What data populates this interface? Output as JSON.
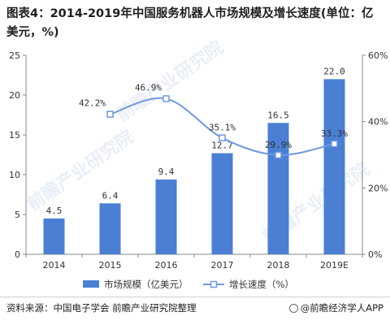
{
  "header": {
    "title": "图表4：2014-2019年中国服务机器人市场规模及增长速度(单位：亿美元，%)"
  },
  "footer": {
    "source": "资料来源：中国电子学会 前瞻产业研究院整理",
    "credit": "@前瞻经济学人APP"
  },
  "watermark": "前瞻产业研究院",
  "colors": {
    "bar": "#4a7fd4",
    "line": "#6f99dd",
    "marker_fill": "#ffffff",
    "grid": "#d9d9d9",
    "axis_text": "#333333"
  },
  "chart_data": {
    "type": "bar",
    "categories": [
      "2014",
      "2015",
      "2016",
      "2017",
      "2018",
      "2019E"
    ],
    "series": [
      {
        "name": "市场规模（亿美元）",
        "type": "bar",
        "axis": "left",
        "values": [
          4.5,
          6.4,
          9.4,
          12.7,
          16.5,
          22.0
        ],
        "labels": [
          "4.5",
          "6.4",
          "9.4",
          "12.7",
          "16.5",
          "22.0"
        ]
      },
      {
        "name": "增长速度（%）",
        "type": "line",
        "axis": "right",
        "values": [
          null,
          42.2,
          46.9,
          35.1,
          29.9,
          33.3
        ],
        "labels": [
          "",
          "42.2%",
          "46.9%",
          "35.1%",
          "29.9%",
          "33.3%"
        ]
      }
    ],
    "y_left": {
      "lim": [
        0,
        25
      ],
      "ticks": [
        "0",
        "5",
        "10",
        "15",
        "20",
        "25"
      ]
    },
    "y_right": {
      "lim": [
        0,
        60
      ],
      "ticks": [
        "0%",
        "20%",
        "40%",
        "60%"
      ]
    },
    "grid": false,
    "legend_position": "bottom"
  }
}
